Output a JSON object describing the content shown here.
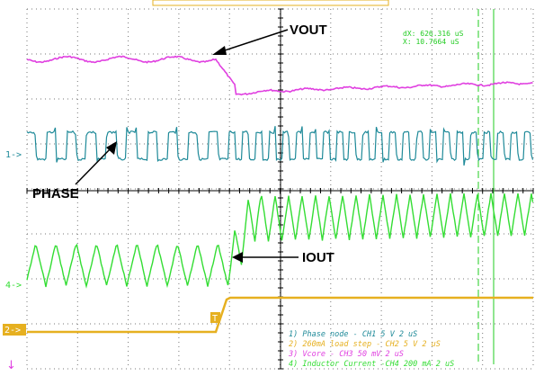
{
  "chart_data": {
    "type": "line",
    "title": "",
    "xlabel": "",
    "ylabel": "",
    "grid": true,
    "time_per_div": "2 uS",
    "cursor_readout": {
      "dx": "dX: 626.316 uS",
      "x": "X: 10.7664 uS"
    },
    "annotations": {
      "vout": "VOUT",
      "phase": "PHASE",
      "iout": "IOUT"
    },
    "channel_markers": {
      "phase": "1->",
      "load_step": "2->",
      "inductor": "4->",
      "trigger": "T"
    },
    "legend": [
      {
        "text": "1) Phase node  - CH1  5   V     2 uS",
        "color": "#1f8a99"
      },
      {
        "text": "2) 260mA load step - CH2  5   V     2 uS",
        "color": "#e6b020"
      },
      {
        "text": "3) Vcore - CH3  50 mV     2 uS",
        "color": "#e040e0"
      },
      {
        "text": "4) Inductor Current -CH4  200 mA    2 uS",
        "color": "#33dd33"
      }
    ],
    "series": [
      {
        "name": "Phase node",
        "color": "#1f8a99"
      },
      {
        "name": "260mA load step",
        "color": "#e6b020"
      },
      {
        "name": "Vcore",
        "color": "#e040e0"
      },
      {
        "name": "Inductor Current",
        "color": "#33dd33"
      }
    ]
  }
}
